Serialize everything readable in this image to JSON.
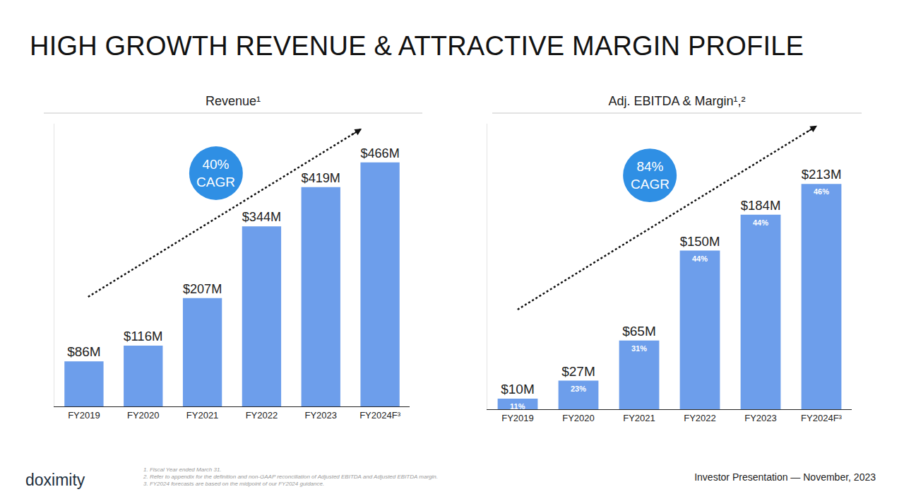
{
  "page": {
    "title": "HIGH GROWTH REVENUE & ATTRACTIVE MARGIN PROFILE",
    "brand": "doximity",
    "footnotes": [
      "1. Fiscal Year ended March 31.",
      "2. Refer to appendix for the definition and non-GAAP reconciliation of Adjusted EBITDA and Adjusted EBITDA margin.",
      "3. FY2024 forecasts are based on the midpoint of our FY2024 guidance."
    ],
    "footer": "Investor Presentation — November, 2023"
  },
  "chart_data": [
    {
      "type": "bar",
      "title": "Revenue¹",
      "categories": [
        "FY2019",
        "FY2020",
        "FY2021",
        "FY2022",
        "FY2023",
        "FY2024F³"
      ],
      "values": [
        86,
        116,
        207,
        344,
        419,
        466
      ],
      "value_labels": [
        "$86M",
        "$116M",
        "$207M",
        "$344M",
        "$419M",
        "$466M"
      ],
      "color": "#6d9eeb",
      "ylim": [
        0,
        540
      ],
      "yticks": [],
      "grid": false,
      "data_labels": true,
      "tick_labels": "x",
      "annotations": [
        {
          "lines": [
            "40%",
            "CAGR"
          ]
        }
      ]
    },
    {
      "type": "bar",
      "title": "Adj. EBITDA & Margin¹,²",
      "categories": [
        "FY2019",
        "FY2020",
        "FY2021",
        "FY2022",
        "FY2023",
        "FY2024F³"
      ],
      "values": [
        10,
        27,
        65,
        150,
        184,
        213
      ],
      "value_labels": [
        "$10M",
        "$27M",
        "$65M",
        "$150M",
        "$184M",
        "$213M"
      ],
      "margins": [
        11,
        23,
        31,
        44,
        44,
        46
      ],
      "margin_labels": [
        "11%",
        "23%",
        "31%",
        "44%",
        "44%",
        "46%"
      ],
      "color": "#6d9eeb",
      "ylim": [
        0,
        270
      ],
      "yticks": [],
      "grid": false,
      "data_labels": true,
      "tick_labels": "x",
      "annotations": [
        {
          "lines": [
            "84%",
            "CAGR"
          ]
        }
      ]
    }
  ]
}
